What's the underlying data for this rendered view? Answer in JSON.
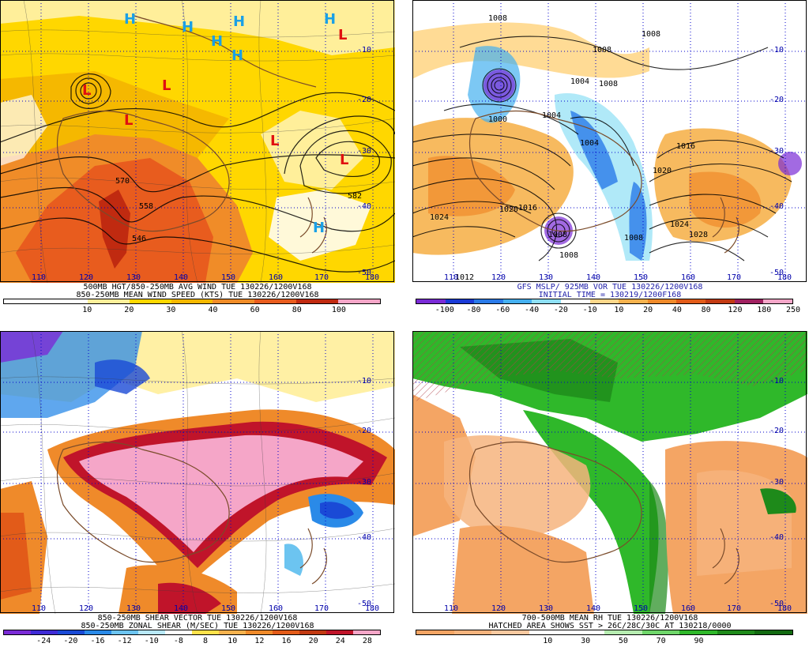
{
  "panels": {
    "p1": {
      "caption1": "500MB HGT/850-250MB AVG WIND TUE 130226/1200V168",
      "caption2": "850-250MB MEAN WIND SPEED (KTS) TUE 130226/1200V168",
      "colorbar": [
        "#ffffff",
        "#ffffff",
        "#ffef9a",
        "#ffd700",
        "#f5b800",
        "#f08c28",
        "#e85c1e",
        "#c02a10",
        "#f5a6c8"
      ],
      "ticks": [
        "10",
        "20",
        "30",
        "40",
        "60",
        "80",
        "100"
      ],
      "lon_labels": [
        "110",
        "120",
        "130",
        "140",
        "150",
        "160",
        "170",
        "180"
      ],
      "lat_labels": [
        "-10",
        "-20",
        "-30",
        "-40",
        "-50"
      ],
      "contour_labels": [
        "570",
        "558",
        "546",
        "582"
      ],
      "H_labels": [
        "H",
        "H",
        "H",
        "H",
        "H",
        "H",
        "H"
      ],
      "L_labels": [
        "L",
        "L",
        "L",
        "L",
        "L",
        "L"
      ]
    },
    "p2": {
      "caption1": "GFS MSLP/ 925MB VOR TUE 130226/1200V168",
      "caption2": "INITIAL TIME = 130219/1200F168",
      "colorbar": [
        "#7a2bd6",
        "#1a3ad6",
        "#2a7ae8",
        "#45b0f0",
        "#8ee0f5",
        "#ffffff",
        "#ffd78a",
        "#f6b24e",
        "#ef8a2a",
        "#e25b19",
        "#c23a12",
        "#a02060",
        "#f5a6c8"
      ],
      "ticks": [
        "-100",
        "-80",
        "-60",
        "-40",
        "-20",
        "-10",
        "10",
        "20",
        "40",
        "80",
        "120",
        "180",
        "250"
      ],
      "lon_labels": [
        "110",
        "120",
        "130",
        "140",
        "150",
        "160",
        "170",
        "180"
      ],
      "lat_labels": [
        "-10",
        "-20",
        "-30",
        "-40",
        "-50"
      ],
      "contour_labels": [
        "1008",
        "1008",
        "1008",
        "1008",
        "1004",
        "1004",
        "1000",
        "1004",
        "1016",
        "1020",
        "1024",
        "1028",
        "1020",
        "1016",
        "1024",
        "1012",
        "1008",
        "1008",
        "1008"
      ]
    },
    "p3": {
      "caption1": "850-250MB SHEAR VECTOR TUE 130226/1200V168",
      "caption2": "850-250MB ZONAL SHEAR (M/SEC) TUE 130226/1200V168",
      "colorbar": [
        "#7a2bd6",
        "#3f2bd6",
        "#1a4ad6",
        "#2a8ae8",
        "#6cc4f0",
        "#b8e8f8",
        "#ffffff",
        "#ffe14a",
        "#f6b24e",
        "#ef8a2a",
        "#e25b19",
        "#c23a12",
        "#c0142a",
        "#f5a6c8"
      ],
      "ticks": [
        "-24",
        "-20",
        "-16",
        "-12",
        "-10",
        "-8",
        "8",
        "10",
        "12",
        "16",
        "20",
        "24",
        "28"
      ],
      "lon_labels": [
        "110",
        "120",
        "130",
        "140",
        "150",
        "160",
        "170",
        "180"
      ],
      "lat_labels": [
        "-10",
        "-20",
        "-30",
        "-40",
        "-50"
      ]
    },
    "p4": {
      "caption1": "700-500MB MEAN RH TUE 130226/1200V168",
      "caption2": "HATCHED AREA SHOWS SST > 26C/28C/30C AT 130218/0000",
      "colorbar": [
        "#f4a564",
        "#f6b47e",
        "#f9c9a0",
        "#ffffff",
        "#ffffff",
        "#b6ecb0",
        "#6fd66a",
        "#2fb82a",
        "#1e8a1a",
        "#126a10"
      ],
      "ticks": [
        "10",
        "30",
        "50",
        "70",
        "90"
      ],
      "lon_labels": [
        "110",
        "120",
        "130",
        "140",
        "150",
        "160",
        "170",
        "180"
      ],
      "lat_labels": [
        "-10",
        "-20",
        "-30",
        "-40",
        "-50"
      ]
    }
  }
}
